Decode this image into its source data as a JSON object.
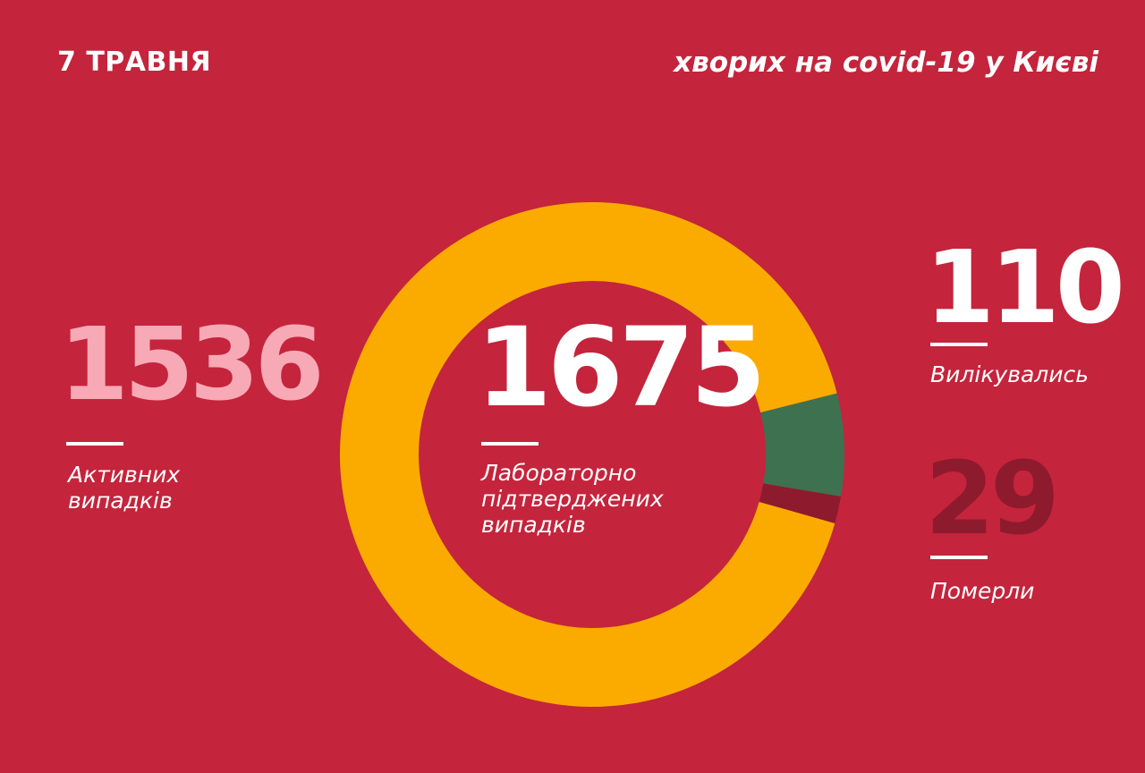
{
  "header": {
    "date": "7 ТРАВНЯ",
    "title": "хворих на covid-19 у Києві"
  },
  "stats": {
    "active": {
      "value": "1536",
      "label_lines": [
        "Активних",
        "випадків"
      ]
    },
    "total": {
      "value": "1675",
      "label_lines": [
        "Лабораторно",
        "підтверджених",
        "випадків"
      ]
    },
    "recovered": {
      "value": "110",
      "label": "Вилікувались"
    },
    "deaths": {
      "value": "29",
      "label": "Померли"
    }
  },
  "colors": {
    "background": "#c4243c",
    "active": "#fbab00",
    "recovered": "#3d7150",
    "deaths": "#8e1a2d",
    "active_number": "#f7a9b6"
  },
  "chart_data": {
    "type": "pie",
    "donut": true,
    "title": "",
    "total": 1675,
    "slices": [
      {
        "label": "Вилікувались",
        "value": 110,
        "color": "#3d7150"
      },
      {
        "label": "Померли",
        "value": 29,
        "color": "#8e1a2d"
      },
      {
        "label": "Активних випадків",
        "value": 1536,
        "color": "#fbab00"
      }
    ]
  }
}
